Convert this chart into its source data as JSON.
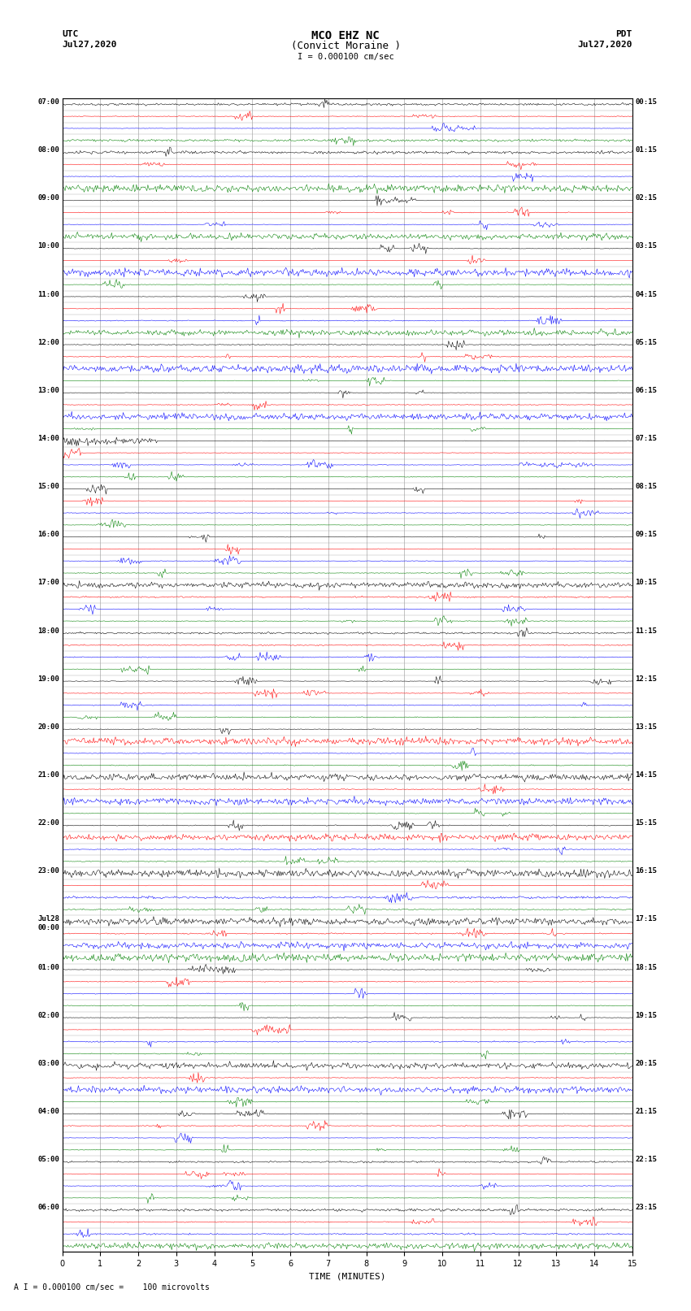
{
  "title_line1": "MCO EHZ NC",
  "title_line2": "(Convict Moraine )",
  "scale_label": "I = 0.000100 cm/sec",
  "footer_label": "A I = 0.000100 cm/sec =    100 microvolts",
  "utc_label": "UTC",
  "utc_date": "Jul27,2020",
  "pdt_label": "PDT",
  "pdt_date": "Jul27,2020",
  "xlabel": "TIME (MINUTES)",
  "left_times": [
    "07:00",
    "08:00",
    "09:00",
    "10:00",
    "11:00",
    "12:00",
    "13:00",
    "14:00",
    "15:00",
    "16:00",
    "17:00",
    "18:00",
    "19:00",
    "20:00",
    "21:00",
    "22:00",
    "23:00",
    "Jul28\n00:00",
    "01:00",
    "02:00",
    "03:00",
    "04:00",
    "05:00",
    "06:00"
  ],
  "right_times": [
    "00:15",
    "01:15",
    "02:15",
    "03:15",
    "04:15",
    "05:15",
    "06:15",
    "07:15",
    "08:15",
    "09:15",
    "10:15",
    "11:15",
    "12:15",
    "13:15",
    "14:15",
    "15:15",
    "16:15",
    "17:15",
    "18:15",
    "19:15",
    "20:15",
    "21:15",
    "22:15",
    "23:15"
  ],
  "n_rows": 24,
  "traces_per_row": 4,
  "colors": [
    "black",
    "red",
    "blue",
    "green"
  ],
  "bg_color": "#ffffff",
  "line_color": "#aaaaaa",
  "minutes": 15,
  "samples_per_minute": 40,
  "noise_base": 0.08,
  "figwidth": 8.5,
  "figheight": 16.13,
  "dpi": 100
}
